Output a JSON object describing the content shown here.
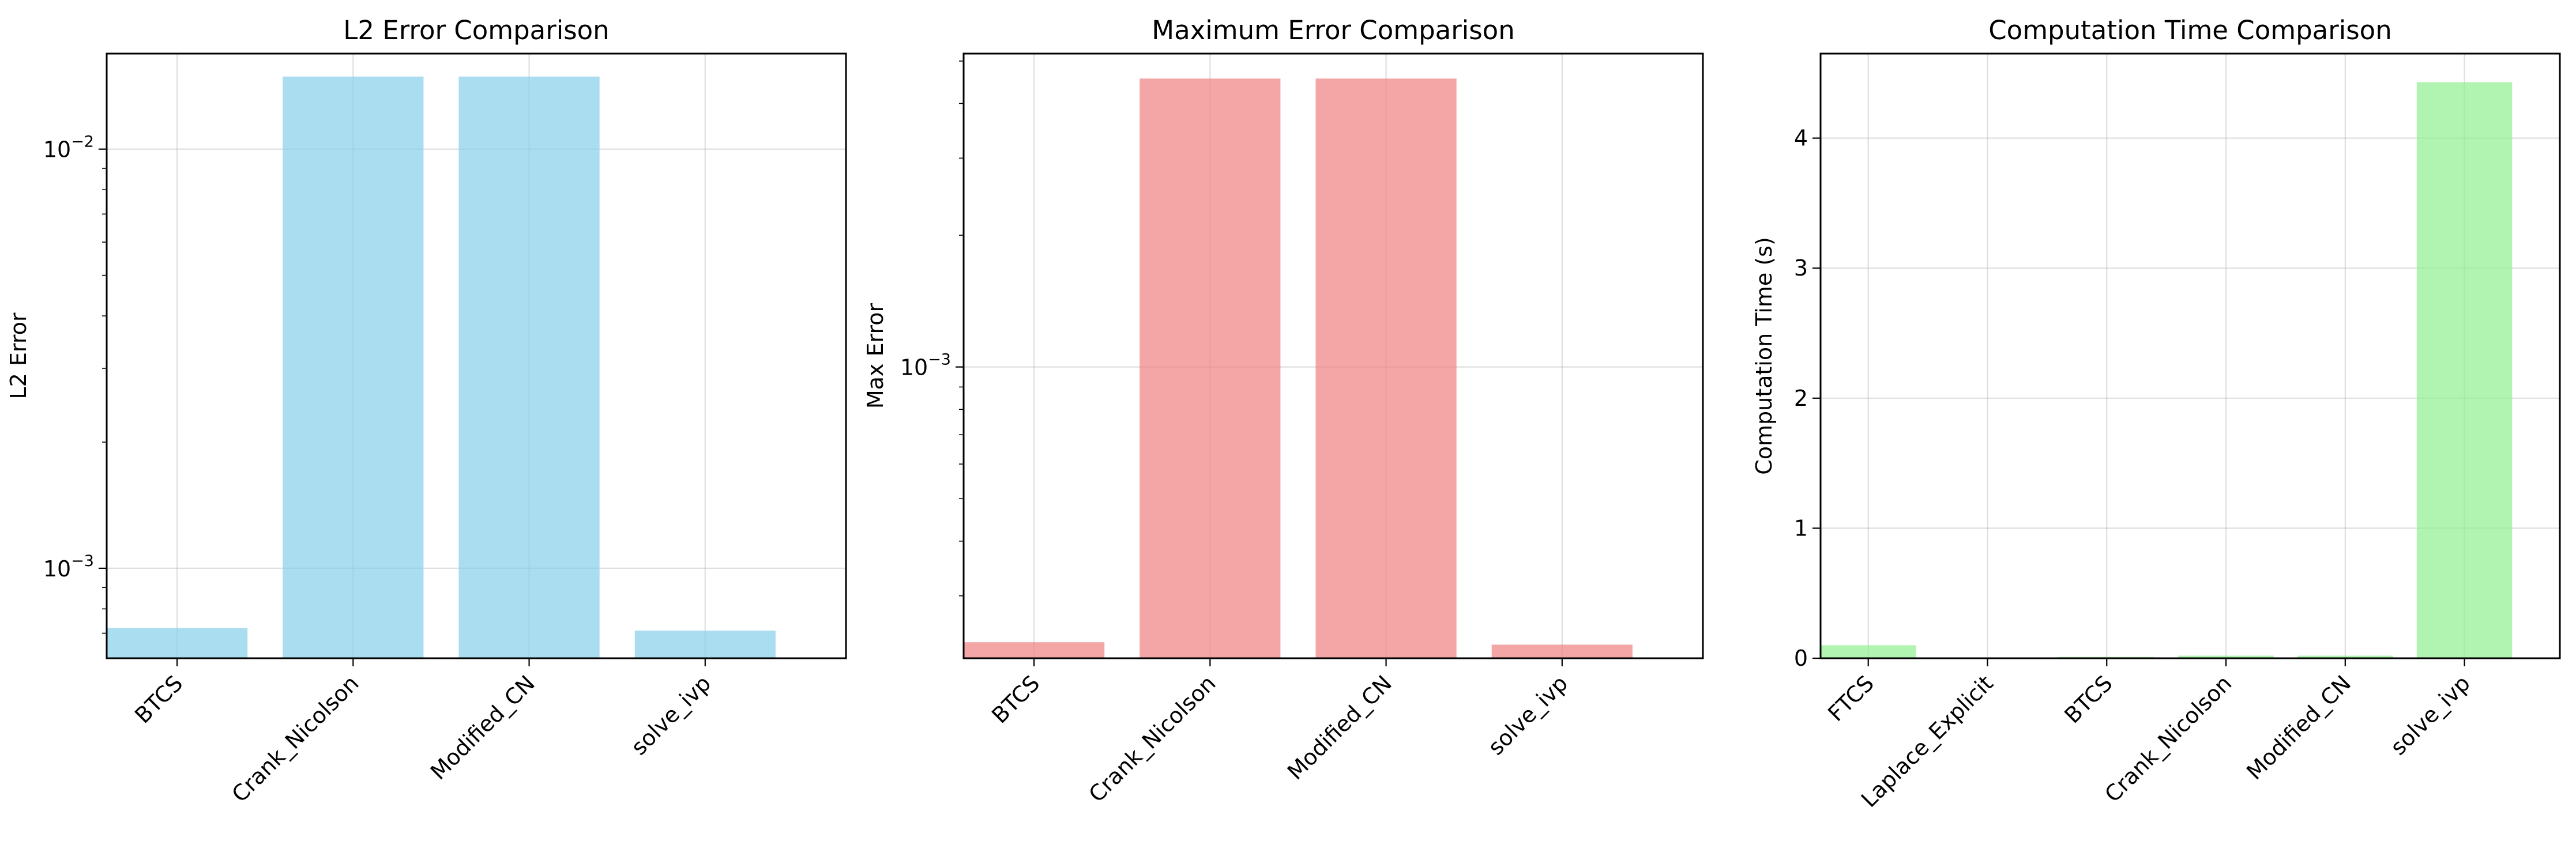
{
  "chart_data": [
    {
      "type": "bar",
      "title": "L2 Error Comparison",
      "xlabel": "",
      "ylabel": "L2 Error",
      "yscale": "log",
      "ylim": [
        0.00061,
        0.0169
      ],
      "color": "#87ceeb",
      "categories": [
        "BTCS",
        "Crank_Nicolson",
        "Modified_CN",
        "solve_ivp"
      ],
      "values": [
        0.00072,
        0.0149,
        0.0149,
        0.00071
      ],
      "yticks": [
        0.001,
        0.01
      ],
      "ytick_labels": [
        {
          "base": "10",
          "exp": "−3"
        },
        {
          "base": "10",
          "exp": "−2"
        }
      ],
      "grid": true
    },
    {
      "type": "bar",
      "title": "Maximum Error Comparison",
      "xlabel": "",
      "ylabel": "Max Error",
      "yscale": "log",
      "ylim": [
        0.000216,
        0.0052
      ],
      "color": "#f08080",
      "categories": [
        "BTCS",
        "Crank_Nicolson",
        "Modified_CN",
        "solve_ivp"
      ],
      "values": [
        0.000235,
        0.00456,
        0.00456,
        0.000232
      ],
      "yticks": [
        0.001
      ],
      "ytick_labels": [
        {
          "base": "10",
          "exp": "−3"
        }
      ],
      "grid": true
    },
    {
      "type": "bar",
      "title": "Computation Time Comparison",
      "xlabel": "",
      "ylabel": "Computation Time (s)",
      "yscale": "linear",
      "ylim": [
        0,
        4.65
      ],
      "color": "#90ee90",
      "categories": [
        "FTCS",
        "Laplace_Explicit",
        "BTCS",
        "Crank_Nicolson",
        "Modified_CN",
        "solve_ivp"
      ],
      "values": [
        0.1,
        0.005,
        0.01,
        0.02,
        0.02,
        4.43
      ],
      "yticks": [
        0,
        1,
        2,
        3,
        4
      ],
      "ytick_labels": [
        "0",
        "1",
        "2",
        "3",
        "4"
      ],
      "grid": true
    }
  ]
}
